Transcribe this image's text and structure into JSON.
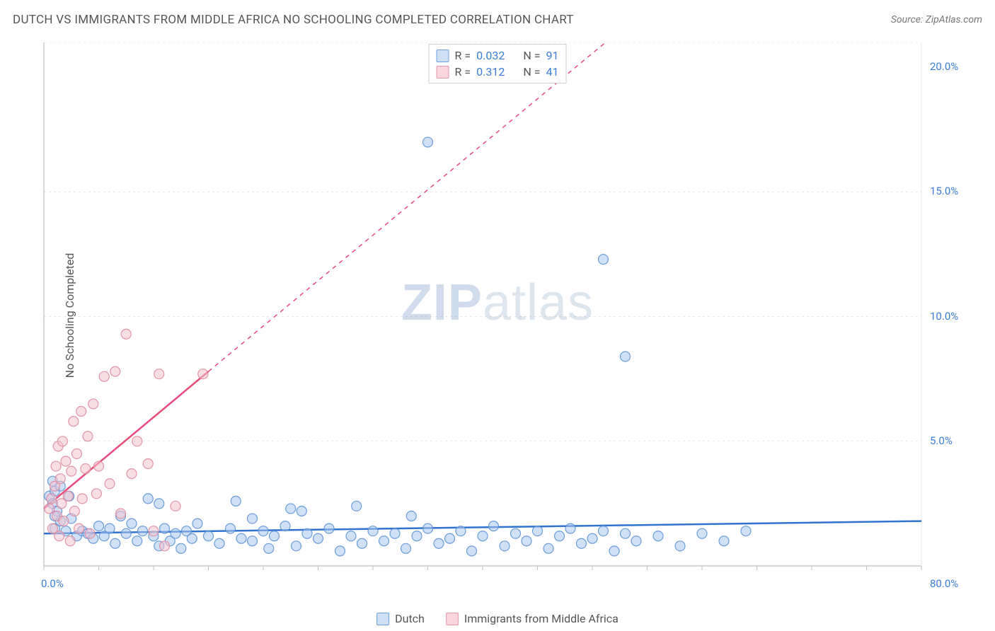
{
  "title": "DUTCH VS IMMIGRANTS FROM MIDDLE AFRICA NO SCHOOLING COMPLETED CORRELATION CHART",
  "source_label": "Source: ZipAtlas.com",
  "ylabel": "No Schooling Completed",
  "watermark_bold": "ZIP",
  "watermark_light": "atlas",
  "stats": [
    {
      "swatch_fill": "#cfe0f5",
      "swatch_stroke": "#6fa0e0",
      "r_label": "R =",
      "r_value": "0.032",
      "n_label": "N =",
      "n_value": "91"
    },
    {
      "swatch_fill": "#f9d5de",
      "swatch_stroke": "#e698ad",
      "r_label": "R =",
      "r_value": "0.312",
      "n_label": "N =",
      "n_value": "41"
    }
  ],
  "legend": [
    {
      "swatch_fill": "#cfe0f5",
      "swatch_stroke": "#6fa0e0",
      "label": "Dutch"
    },
    {
      "swatch_fill": "#f9d5de",
      "swatch_stroke": "#e698ad",
      "label": "Immigrants from Middle Africa"
    }
  ],
  "chart": {
    "type": "scatter",
    "xlim": [
      0,
      80
    ],
    "ylim": [
      0,
      21
    ],
    "xtick_labels": [
      {
        "v": 0,
        "label": "0.0%"
      },
      {
        "v": 80,
        "label": "80.0%"
      }
    ],
    "ytick_labels": [
      {
        "v": 5,
        "label": "5.0%"
      },
      {
        "v": 10,
        "label": "10.0%"
      },
      {
        "v": 15,
        "label": "15.0%"
      },
      {
        "v": 20,
        "label": "20.0%"
      }
    ],
    "y_gridlines": [
      5,
      10,
      15,
      21
    ],
    "x_minor_ticks_step": 5,
    "background_color": "#ffffff",
    "grid_color": "#e3e3e3",
    "axis_color": "#bfbfbf",
    "marker_radius": 7,
    "marker_opacity": 0.55,
    "series": [
      {
        "name": "Dutch",
        "fill": "#a9c7ee",
        "stroke": "#5d94d6",
        "trend": {
          "x1": 0,
          "y1": 1.3,
          "x2": 80,
          "y2": 1.8,
          "color": "#2f72d0",
          "width": 2.5,
          "dash": "none"
        },
        "points": [
          [
            0.5,
            2.8
          ],
          [
            0.8,
            2.5
          ],
          [
            1.0,
            3.0
          ],
          [
            1.2,
            2.2
          ],
          [
            1.0,
            1.5
          ],
          [
            1.5,
            1.8
          ],
          [
            2.0,
            1.4
          ],
          [
            2.5,
            1.9
          ],
          [
            3.0,
            1.2
          ],
          [
            3.5,
            1.4
          ],
          [
            4.0,
            1.3
          ],
          [
            4.5,
            1.1
          ],
          [
            5.0,
            1.6
          ],
          [
            5.5,
            1.2
          ],
          [
            6.0,
            1.5
          ],
          [
            6.5,
            0.9
          ],
          [
            7.0,
            2.0
          ],
          [
            7.5,
            1.3
          ],
          [
            8.0,
            1.7
          ],
          [
            8.5,
            1.0
          ],
          [
            9.0,
            1.4
          ],
          [
            9.5,
            2.7
          ],
          [
            10.0,
            1.2
          ],
          [
            10.5,
            0.8
          ],
          [
            11.0,
            1.5
          ],
          [
            11.5,
            1.0
          ],
          [
            12.0,
            1.3
          ],
          [
            12.5,
            0.7
          ],
          [
            13.0,
            1.4
          ],
          [
            13.5,
            1.1
          ],
          [
            14.0,
            1.7
          ],
          [
            15.0,
            1.2
          ],
          [
            16.0,
            0.9
          ],
          [
            17.0,
            1.5
          ],
          [
            17.5,
            2.6
          ],
          [
            18.0,
            1.1
          ],
          [
            19.0,
            1.0
          ],
          [
            20.0,
            1.4
          ],
          [
            20.5,
            0.7
          ],
          [
            21.0,
            1.2
          ],
          [
            22.0,
            1.6
          ],
          [
            22.5,
            2.3
          ],
          [
            23.0,
            0.8
          ],
          [
            24.0,
            1.3
          ],
          [
            25.0,
            1.1
          ],
          [
            26.0,
            1.5
          ],
          [
            27.0,
            0.6
          ],
          [
            28.0,
            1.2
          ],
          [
            28.5,
            2.4
          ],
          [
            29.0,
            0.9
          ],
          [
            30.0,
            1.4
          ],
          [
            31.0,
            1.0
          ],
          [
            32.0,
            1.3
          ],
          [
            33.0,
            0.7
          ],
          [
            33.5,
            2.0
          ],
          [
            34.0,
            1.2
          ],
          [
            35.0,
            1.5
          ],
          [
            36.0,
            0.9
          ],
          [
            37.0,
            1.1
          ],
          [
            38.0,
            1.4
          ],
          [
            39.0,
            0.6
          ],
          [
            40.0,
            1.2
          ],
          [
            41.0,
            1.6
          ],
          [
            42.0,
            0.8
          ],
          [
            43.0,
            1.3
          ],
          [
            44.0,
            1.0
          ],
          [
            45.0,
            1.4
          ],
          [
            46.0,
            0.7
          ],
          [
            47.0,
            1.2
          ],
          [
            48.0,
            1.5
          ],
          [
            49.0,
            0.9
          ],
          [
            50.0,
            1.1
          ],
          [
            51.0,
            1.4
          ],
          [
            52.0,
            0.6
          ],
          [
            53.0,
            1.3
          ],
          [
            54.0,
            1.0
          ],
          [
            56.0,
            1.2
          ],
          [
            58.0,
            0.8
          ],
          [
            60.0,
            1.3
          ],
          [
            62.0,
            1.0
          ],
          [
            64.0,
            1.4
          ],
          [
            35.0,
            17.0
          ],
          [
            51.0,
            12.3
          ],
          [
            53.0,
            8.4
          ],
          [
            10.5,
            2.5
          ],
          [
            19.0,
            1.9
          ],
          [
            23.5,
            2.2
          ],
          [
            1.5,
            3.2
          ],
          [
            0.8,
            3.4
          ],
          [
            2.3,
            2.8
          ],
          [
            1.0,
            2.0
          ]
        ]
      },
      {
        "name": "Immigrants from Middle Africa",
        "fill": "#f3c2cf",
        "stroke": "#e08aa0",
        "trend": {
          "x1": 0,
          "y1": 2.3,
          "x2": 15,
          "y2": 7.8,
          "color": "#e84a7a",
          "width": 2.5,
          "dash": "none"
        },
        "trend_ext": {
          "x1": 15,
          "y1": 7.8,
          "x2": 80,
          "y2": 31.5,
          "color": "#e84a7a",
          "width": 1.5,
          "dash": "6,6"
        },
        "points": [
          [
            0.5,
            2.3
          ],
          [
            0.7,
            2.7
          ],
          [
            0.8,
            1.5
          ],
          [
            1.0,
            3.2
          ],
          [
            1.1,
            4.0
          ],
          [
            1.2,
            2.0
          ],
          [
            1.3,
            4.8
          ],
          [
            1.4,
            1.2
          ],
          [
            1.5,
            3.5
          ],
          [
            1.6,
            2.5
          ],
          [
            1.7,
            5.0
          ],
          [
            1.8,
            1.8
          ],
          [
            2.0,
            4.2
          ],
          [
            2.2,
            2.8
          ],
          [
            2.4,
            1.0
          ],
          [
            2.5,
            3.8
          ],
          [
            2.7,
            5.8
          ],
          [
            2.8,
            2.2
          ],
          [
            3.0,
            4.5
          ],
          [
            3.2,
            1.5
          ],
          [
            3.4,
            6.2
          ],
          [
            3.5,
            2.7
          ],
          [
            3.8,
            3.9
          ],
          [
            4.0,
            5.2
          ],
          [
            4.2,
            1.3
          ],
          [
            4.5,
            6.5
          ],
          [
            4.8,
            2.9
          ],
          [
            5.0,
            4.0
          ],
          [
            5.5,
            7.6
          ],
          [
            6.0,
            3.3
          ],
          [
            6.5,
            7.8
          ],
          [
            7.0,
            2.1
          ],
          [
            7.5,
            9.3
          ],
          [
            8.0,
            3.7
          ],
          [
            8.5,
            5.0
          ],
          [
            9.5,
            4.1
          ],
          [
            10.5,
            7.7
          ],
          [
            11.0,
            0.8
          ],
          [
            12.0,
            2.4
          ],
          [
            14.5,
            7.7
          ],
          [
            10.0,
            1.4
          ]
        ]
      }
    ]
  }
}
